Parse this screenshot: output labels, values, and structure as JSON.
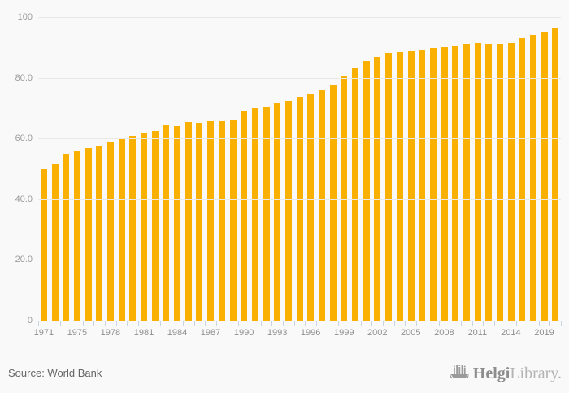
{
  "chart_data": {
    "type": "bar",
    "title": "",
    "bar_color": "#f9b000",
    "background_color": "#f9f9f9",
    "gridline_color": "#e9e9e9",
    "axis_line_color": "#ccd6e3",
    "ylim": [
      0,
      100
    ],
    "grid": true,
    "legend": false,
    "x_label_every": 3,
    "y_ticks": [
      {
        "value": 0,
        "label": "0"
      },
      {
        "value": 20,
        "label": "20.0"
      },
      {
        "value": 40,
        "label": "40.0"
      },
      {
        "value": 60,
        "label": "60.0"
      },
      {
        "value": 80,
        "label": "80.0"
      },
      {
        "value": 100,
        "label": "100"
      }
    ],
    "categories": [
      "1971",
      "1973",
      "1974",
      "1975",
      "1976",
      "1977",
      "1978",
      "1979",
      "1980",
      "1981",
      "1982",
      "1983",
      "1984",
      "1985",
      "1986",
      "1987",
      "1988",
      "1989",
      "1990",
      "1991",
      "1992",
      "1993",
      "1994",
      "1995",
      "1996",
      "1997",
      "1998",
      "1999",
      "2000",
      "2001",
      "2002",
      "2003",
      "2004",
      "2005",
      "2006",
      "2007",
      "2008",
      "2009",
      "2010",
      "2011",
      "2012",
      "2013",
      "2014",
      "2015",
      "2017",
      "2019",
      "2020"
    ],
    "values": [
      50.0,
      51.4,
      55.0,
      55.7,
      56.8,
      57.6,
      58.8,
      59.7,
      60.9,
      61.8,
      62.6,
      64.3,
      64.1,
      65.3,
      65.2,
      65.6,
      65.6,
      66.2,
      69.2,
      70.1,
      70.4,
      71.7,
      72.5,
      73.7,
      74.7,
      76.2,
      77.7,
      80.7,
      83.4,
      85.6,
      86.8,
      88.2,
      88.4,
      88.7,
      89.2,
      89.7,
      90.0,
      90.5,
      91.2,
      91.4,
      91.1,
      91.2,
      91.3,
      93.1,
      94.1,
      95.2,
      96.3
    ]
  },
  "footer": {
    "source": "Source: World Bank",
    "logo_helgi": "Helgi",
    "logo_library": "Library."
  }
}
